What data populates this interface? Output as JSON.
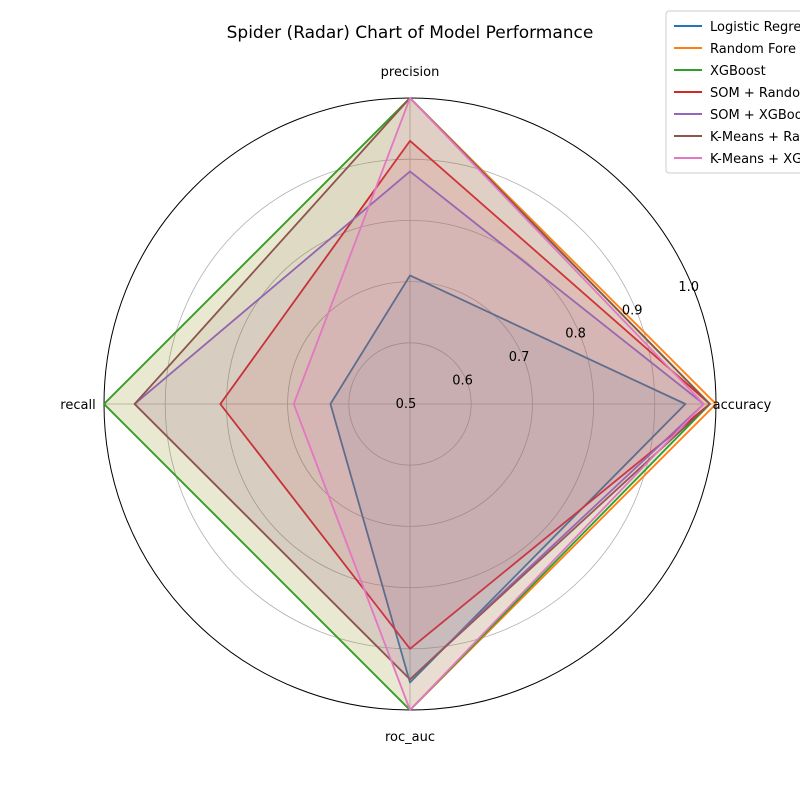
{
  "chart_data": {
    "type": "radar",
    "title": "Spider (Radar) Chart of Model Performance",
    "axes": [
      "accuracy",
      "precision",
      "recall",
      "roc_auc"
    ],
    "rlim": [
      0.5,
      1.0
    ],
    "r_ticks": [
      0.5,
      0.6,
      0.7,
      0.8,
      0.9,
      1.0
    ],
    "r_tick_labels": [
      "0.5",
      "0.6",
      "0.7",
      "0.8",
      "0.9",
      "1.0"
    ],
    "grid": true,
    "legend_position": "top-right",
    "fill_opacity": 0.1,
    "series": [
      {
        "name": "Logistic Regression",
        "legend_text": "Logistic Regre",
        "color": "#1f77b4",
        "values": [
          0.95,
          0.71,
          0.63,
          0.955
        ]
      },
      {
        "name": "Random Forest",
        "legend_text": "Random Fore",
        "color": "#ff7f0e",
        "values": [
          1.0,
          1.0,
          1.0,
          1.0
        ]
      },
      {
        "name": "XGBoost",
        "legend_text": "XGBoost",
        "color": "#2ca02c",
        "values": [
          0.99,
          1.0,
          1.0,
          1.0
        ]
      },
      {
        "name": "SOM + Random Forest",
        "legend_text": "SOM + Rando",
        "color": "#d62728",
        "values": [
          0.99,
          0.93,
          0.81,
          0.9
        ]
      },
      {
        "name": "SOM + XGBoost",
        "legend_text": "SOM + XGBoo",
        "color": "#9467bd",
        "values": [
          0.98,
          0.88,
          0.95,
          0.95
        ]
      },
      {
        "name": "K-Means + Random Forest",
        "legend_text": "K-Means + Ra",
        "color": "#8c564b",
        "values": [
          0.99,
          1.0,
          0.95,
          0.95
        ]
      },
      {
        "name": "K-Means + XGBoost",
        "legend_text": "K-Means + XG",
        "color": "#e377c2",
        "values": [
          0.98,
          1.0,
          0.69,
          1.0
        ]
      }
    ]
  }
}
